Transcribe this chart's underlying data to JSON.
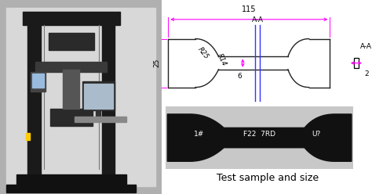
{
  "fig_width": 4.74,
  "fig_height": 2.48,
  "dpi": 100,
  "background": "#ffffff",
  "title_text": "Test sample and size",
  "title_fontsize": 9,
  "dim_115": "115",
  "dim_25": "25",
  "dim_R25": "R25",
  "dim_R14": "R14",
  "dim_6": "6",
  "dim_AA": "A-A",
  "dim_2": "2",
  "dim_color": "#000000",
  "magenta": "#FF00FF",
  "blue": "#3333FF",
  "annotation_fontsize": 6.5,
  "spec_draw_color": "#222222",
  "spec_real_color": "#111111",
  "spec_real_bg": "#cccccc"
}
